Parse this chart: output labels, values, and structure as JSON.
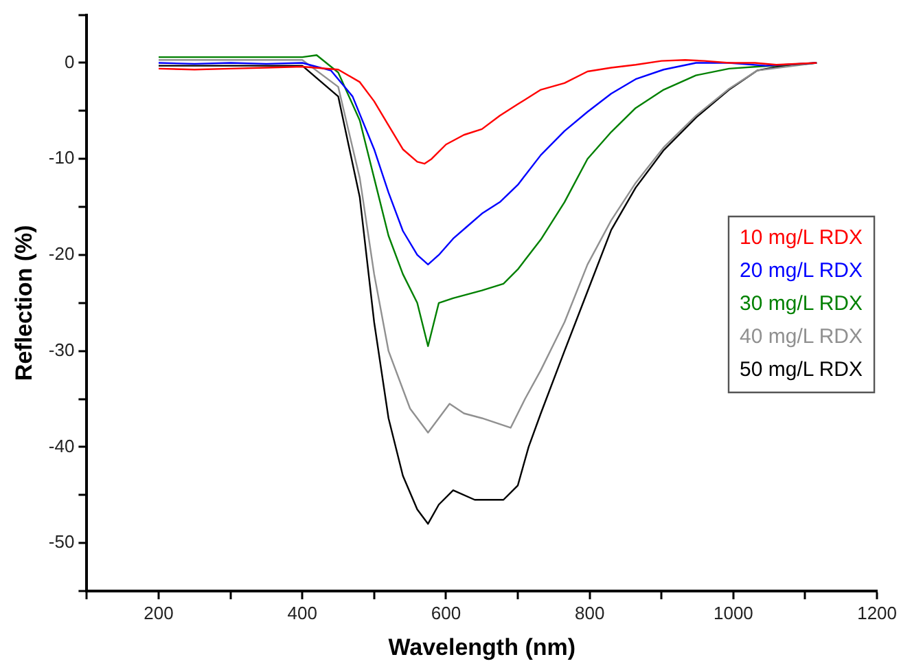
{
  "chart_data": {
    "type": "line",
    "xlabel": "Wavelength (nm)",
    "ylabel": "Reflection (%)",
    "xlim": [
      100,
      1200
    ],
    "ylim": [
      -55,
      5
    ],
    "xticks": [
      {
        "value": 100,
        "label": null
      },
      200,
      {
        "value": 300,
        "label": null
      },
      400,
      {
        "value": 500,
        "label": null
      },
      600,
      {
        "value": 700,
        "label": null
      },
      800,
      {
        "value": 900,
        "label": null
      },
      1000,
      {
        "value": 1100,
        "label": null
      },
      1200
    ],
    "yticks": [
      {
        "value": 5,
        "label": null
      },
      0,
      {
        "value": -5,
        "label": null
      },
      -10,
      {
        "value": -15,
        "label": null
      },
      -20,
      {
        "value": -25,
        "label": null
      },
      -30,
      {
        "value": -35,
        "label": null
      },
      -40,
      {
        "value": -45,
        "label": null
      },
      -50,
      {
        "value": -55,
        "label": null
      }
    ],
    "grid": false,
    "legend": "right",
    "marker": "none",
    "line_style": "solid",
    "series": [
      {
        "name": "10 mg/L RDX",
        "color": "#ff0000",
        "x": [
          200,
          250,
          300,
          350,
          400,
          450,
          480,
          500,
          520,
          540,
          560,
          570,
          580,
          600,
          625,
          650,
          675,
          700,
          732,
          765,
          797,
          830,
          864,
          900,
          933,
          960,
          994,
          1030,
          1060,
          1116
        ],
        "values": [
          -0.6,
          -0.7,
          -0.6,
          -0.5,
          -0.4,
          -0.7,
          -2,
          -4,
          -6.5,
          -9,
          -10.3,
          -10.5,
          -10,
          -8.5,
          -7.5,
          -6.9,
          -5.5,
          -4.3,
          -2.8,
          -2.1,
          -0.9,
          -0.5,
          -0.2,
          0.2,
          0.3,
          0.2,
          0,
          0,
          -0.2,
          0
        ]
      },
      {
        "name": "20 mg/L RDX",
        "color": "#0000ff",
        "x": [
          200,
          250,
          300,
          350,
          400,
          440,
          470,
          500,
          520,
          540,
          560,
          575,
          590,
          610,
          630,
          650,
          675,
          700,
          732,
          765,
          797,
          830,
          864,
          903,
          948,
          994,
          1045,
          1116
        ],
        "values": [
          0,
          -0.1,
          0,
          -0.1,
          0,
          -0.8,
          -3.5,
          -9,
          -13.5,
          -17.5,
          -20,
          -21,
          -20,
          -18.3,
          -17,
          -15.7,
          -14.5,
          -12.7,
          -9.6,
          -7.1,
          -5.1,
          -3.2,
          -1.7,
          -0.7,
          0,
          0,
          -0.3,
          0
        ]
      },
      {
        "name": "30 mg/L RDX",
        "color": "#008000",
        "x": [
          200,
          250,
          300,
          350,
          400,
          420,
          450,
          480,
          500,
          520,
          540,
          560,
          575,
          590,
          610,
          650,
          680,
          700,
          732,
          765,
          797,
          830,
          864,
          903,
          948,
          994,
          1033,
          1116
        ],
        "values": [
          0.6,
          0.6,
          0.6,
          0.6,
          0.6,
          0.8,
          -1,
          -6,
          -12,
          -18,
          -22,
          -25,
          -29.5,
          -25,
          -24.5,
          -23.7,
          -23,
          -21.5,
          -18.4,
          -14.5,
          -10,
          -7.2,
          -4.7,
          -2.8,
          -1.3,
          -0.6,
          -0.4,
          0
        ]
      },
      {
        "name": "40 mg/L RDX",
        "color": "#909090",
        "x": [
          200,
          250,
          300,
          350,
          400,
          450,
          480,
          500,
          520,
          550,
          575,
          590,
          605,
          625,
          650,
          690,
          710,
          732,
          765,
          797,
          830,
          864,
          903,
          948,
          994,
          1033,
          1116
        ],
        "values": [
          0.3,
          0.3,
          0.3,
          0.3,
          0.3,
          -2.5,
          -12,
          -22,
          -30,
          -36,
          -38.5,
          -37,
          -35.5,
          -36.5,
          -37,
          -38,
          -35,
          -32,
          -27,
          -21,
          -16.4,
          -12.5,
          -8.8,
          -5.5,
          -2.7,
          -0.8,
          0
        ]
      },
      {
        "name": "50 mg/L RDX",
        "color": "#000000",
        "x": [
          200,
          250,
          300,
          350,
          400,
          450,
          480,
          500,
          520,
          540,
          560,
          575,
          590,
          610,
          640,
          680,
          700,
          715,
          732,
          765,
          797,
          830,
          864,
          903,
          948,
          994,
          1033,
          1061,
          1116
        ],
        "values": [
          -0.3,
          -0.3,
          -0.3,
          -0.3,
          -0.3,
          -3.5,
          -14,
          -27,
          -37,
          -43,
          -46.5,
          -48,
          -46,
          -44.5,
          -45.5,
          -45.5,
          -44,
          -40,
          -36.5,
          -30,
          -23.8,
          -17.4,
          -13,
          -9.1,
          -5.7,
          -2.8,
          -0.8,
          -0.4,
          0
        ]
      }
    ]
  }
}
